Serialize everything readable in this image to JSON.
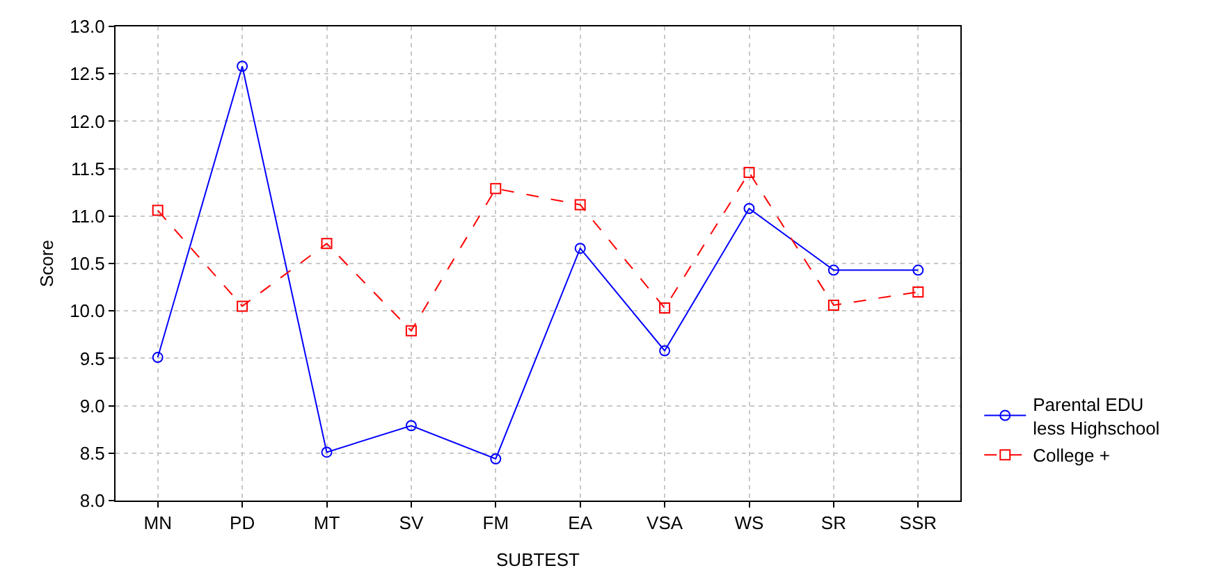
{
  "chart_data": {
    "type": "line",
    "xlabel": "SUBTEST",
    "ylabel": "Score",
    "categories": [
      "MN",
      "PD",
      "MT",
      "SV",
      "FM",
      "EA",
      "VSA",
      "WS",
      "SR",
      "SSR"
    ],
    "series": [
      {
        "name": "Parental EDU\nless Highschool",
        "color": "#0000ff",
        "marker": "circle",
        "line_style": "solid",
        "values": [
          9.51,
          12.58,
          8.51,
          8.79,
          8.44,
          10.66,
          9.58,
          11.08,
          10.43,
          10.43
        ]
      },
      {
        "name": "College +",
        "color": "#ff0000",
        "marker": "square",
        "line_style": "dashed",
        "values": [
          11.06,
          10.05,
          10.71,
          9.79,
          11.29,
          11.12,
          10.03,
          11.46,
          10.06,
          10.2
        ]
      }
    ],
    "ylim": [
      8.0,
      13.0
    ],
    "yticks": [
      {
        "value": 8,
        "label": "8.0"
      },
      {
        "value": 8.5,
        "label": "8.5"
      },
      {
        "value": 9,
        "label": "9.0"
      },
      {
        "value": 9.5,
        "label": "9.5"
      },
      {
        "value": 10,
        "label": "10.0"
      },
      {
        "value": 10.5,
        "label": "10.5"
      },
      {
        "value": 11,
        "label": "11.0"
      },
      {
        "value": 11.5,
        "label": "11.5"
      },
      {
        "value": 12,
        "label": "12.0"
      },
      {
        "value": 12.5,
        "label": "12.5"
      },
      {
        "value": 13,
        "label": "13.0"
      }
    ],
    "grid": true,
    "legend": "bottom right"
  }
}
